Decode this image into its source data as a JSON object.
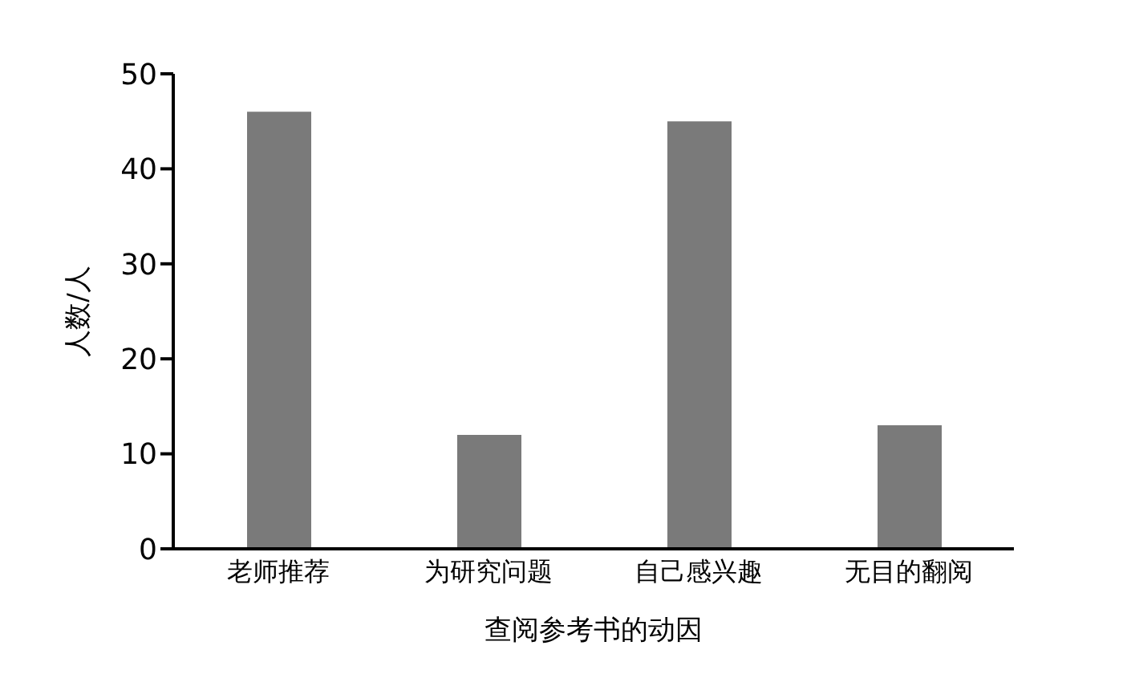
{
  "chart_data": {
    "type": "bar",
    "xlabel": "查阅参考书的动因",
    "ylabel": "人数/人",
    "categories": [
      "老师推荐",
      "为研究问题",
      "自己感兴趣",
      "无目的翻阅"
    ],
    "values": [
      46,
      12,
      45,
      13
    ],
    "color": "#7a7a7a",
    "ylim": [
      0,
      50
    ],
    "yticks": [
      0,
      10,
      20,
      30,
      40,
      50
    ],
    "grid": false
  }
}
